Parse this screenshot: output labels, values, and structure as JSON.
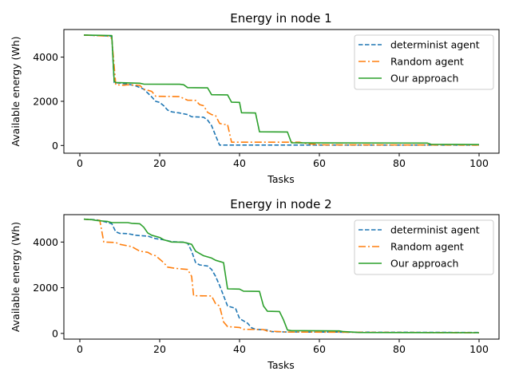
{
  "chart_data": [
    {
      "type": "line",
      "title": "Energy in node 1",
      "xlabel": "Tasks",
      "ylabel": "Available energy (Wh)",
      "xlim": [
        -4,
        105
      ],
      "ylim": [
        -350,
        5250
      ],
      "xticks": [
        0,
        20,
        40,
        60,
        80,
        100
      ],
      "yticks": [
        0,
        2000,
        4000
      ],
      "legend_position": "top-right",
      "series": [
        {
          "name": "determinist agent",
          "color": "#1f77b4",
          "dash": "dashed",
          "points": [
            [
              1,
              5000
            ],
            [
              8,
              4950
            ],
            [
              8.6,
              2850
            ],
            [
              12,
              2780
            ],
            [
              14,
              2700
            ],
            [
              16,
              2550
            ],
            [
              18,
              2200
            ],
            [
              19,
              2000
            ],
            [
              20,
              1950
            ],
            [
              21,
              1800
            ],
            [
              22,
              1600
            ],
            [
              23,
              1520
            ],
            [
              25,
              1470
            ],
            [
              27,
              1400
            ],
            [
              28,
              1300
            ],
            [
              31,
              1280
            ],
            [
              32,
              1150
            ],
            [
              33,
              900
            ],
            [
              34,
              450
            ],
            [
              35,
              20
            ],
            [
              100,
              20
            ]
          ]
        },
        {
          "name": "Random agent",
          "color": "#ff7f0e",
          "dash": "dashdot",
          "points": [
            [
              1,
              5000
            ],
            [
              7,
              4950
            ],
            [
              8,
              4850
            ],
            [
              9,
              2750
            ],
            [
              11,
              2730
            ],
            [
              12,
              2750
            ],
            [
              15,
              2720
            ],
            [
              16,
              2550
            ],
            [
              18,
              2450
            ],
            [
              19,
              2230
            ],
            [
              23,
              2220
            ],
            [
              25,
              2210
            ],
            [
              26,
              2130
            ],
            [
              27,
              2050
            ],
            [
              29,
              2040
            ],
            [
              30,
              1850
            ],
            [
              31,
              1800
            ],
            [
              32,
              1500
            ],
            [
              33,
              1400
            ],
            [
              34,
              1350
            ],
            [
              35,
              1000
            ],
            [
              36,
              950
            ],
            [
              37,
              950
            ],
            [
              38,
              150
            ],
            [
              55,
              150
            ],
            [
              56,
              100
            ],
            [
              57,
              80
            ],
            [
              59,
              50
            ],
            [
              60,
              30
            ],
            [
              100,
              20
            ]
          ]
        },
        {
          "name": "Our approach",
          "color": "#2ca02c",
          "dash": "solid",
          "points": [
            [
              1,
              5000
            ],
            [
              8,
              4980
            ],
            [
              8.6,
              2900
            ],
            [
              9,
              2850
            ],
            [
              15,
              2820
            ],
            [
              16,
              2780
            ],
            [
              25,
              2770
            ],
            [
              26,
              2750
            ],
            [
              27,
              2620
            ],
            [
              32,
              2610
            ],
            [
              33,
              2300
            ],
            [
              37,
              2290
            ],
            [
              38,
              1960
            ],
            [
              40,
              1950
            ],
            [
              40.5,
              1480
            ],
            [
              44,
              1470
            ],
            [
              45,
              620
            ],
            [
              52,
              610
            ],
            [
              53,
              120
            ],
            [
              87,
              110
            ],
            [
              88,
              50
            ],
            [
              100,
              40
            ]
          ]
        }
      ]
    },
    {
      "type": "line",
      "title": "Energy in node 2",
      "xlabel": "Tasks",
      "ylabel": "Available energy (Wh)",
      "xlim": [
        -4,
        105
      ],
      "ylim": [
        -250,
        5200
      ],
      "xticks": [
        0,
        20,
        40,
        60,
        80,
        100
      ],
      "yticks": [
        0,
        2000,
        4000
      ],
      "legend_position": "top-right",
      "series": [
        {
          "name": "determinist agent",
          "color": "#1f77b4",
          "dash": "dashed",
          "points": [
            [
              1,
              5000
            ],
            [
              4,
              4980
            ],
            [
              6,
              4900
            ],
            [
              8,
              4800
            ],
            [
              9,
              4450
            ],
            [
              10,
              4380
            ],
            [
              12,
              4370
            ],
            [
              14,
              4300
            ],
            [
              15,
              4280
            ],
            [
              17,
              4260
            ],
            [
              19,
              4150
            ],
            [
              21,
              4100
            ],
            [
              23,
              4020
            ],
            [
              26,
              3990
            ],
            [
              27,
              3950
            ],
            [
              28,
              3600
            ],
            [
              29,
              3100
            ],
            [
              30,
              3000
            ],
            [
              32,
              2950
            ],
            [
              33,
              2800
            ],
            [
              34,
              2500
            ],
            [
              35,
              2100
            ],
            [
              37,
              1200
            ],
            [
              39,
              1100
            ],
            [
              40,
              650
            ],
            [
              42,
              450
            ],
            [
              43,
              250
            ],
            [
              44,
              180
            ],
            [
              47,
              150
            ],
            [
              48,
              80
            ],
            [
              52,
              60
            ],
            [
              100,
              40
            ]
          ]
        },
        {
          "name": "Random agent",
          "color": "#ff7f0e",
          "dash": "dashdot",
          "points": [
            [
              1,
              5000
            ],
            [
              5,
              4950
            ],
            [
              6,
              4000
            ],
            [
              9,
              3980
            ],
            [
              10,
              3900
            ],
            [
              13,
              3800
            ],
            [
              14,
              3700
            ],
            [
              15,
              3600
            ],
            [
              17,
              3550
            ],
            [
              18,
              3450
            ],
            [
              19,
              3400
            ],
            [
              20,
              3250
            ],
            [
              21,
              3100
            ],
            [
              22,
              2900
            ],
            [
              24,
              2850
            ],
            [
              25,
              2830
            ],
            [
              27,
              2800
            ],
            [
              28,
              2500
            ],
            [
              28.5,
              1650
            ],
            [
              33,
              1640
            ],
            [
              34,
              1300
            ],
            [
              35,
              1200
            ],
            [
              36,
              500
            ],
            [
              37,
              300
            ],
            [
              40,
              260
            ],
            [
              41,
              180
            ],
            [
              46,
              170
            ],
            [
              47,
              100
            ],
            [
              50,
              80
            ],
            [
              51,
              60
            ],
            [
              100,
              30
            ]
          ]
        },
        {
          "name": "Our approach",
          "color": "#2ca02c",
          "dash": "solid",
          "points": [
            [
              1,
              5000
            ],
            [
              3,
              4980
            ],
            [
              4,
              4950
            ],
            [
              5,
              4930
            ],
            [
              7,
              4900
            ],
            [
              8,
              4850
            ],
            [
              12,
              4850
            ],
            [
              13,
              4820
            ],
            [
              15,
              4800
            ],
            [
              16,
              4650
            ],
            [
              17,
              4400
            ],
            [
              18,
              4300
            ],
            [
              20,
              4200
            ],
            [
              21,
              4100
            ],
            [
              23,
              4000
            ],
            [
              26,
              3990
            ],
            [
              28,
              3900
            ],
            [
              29,
              3600
            ],
            [
              30,
              3500
            ],
            [
              31,
              3400
            ],
            [
              33,
              3300
            ],
            [
              34,
              3200
            ],
            [
              36,
              3100
            ],
            [
              37,
              1950
            ],
            [
              40,
              1940
            ],
            [
              41,
              1850
            ],
            [
              45,
              1840
            ],
            [
              46,
              1200
            ],
            [
              47,
              970
            ],
            [
              50,
              960
            ],
            [
              51,
              600
            ],
            [
              52,
              150
            ],
            [
              53,
              120
            ],
            [
              65,
              110
            ],
            [
              66,
              80
            ],
            [
              68,
              60
            ],
            [
              70,
              40
            ],
            [
              100,
              30
            ]
          ]
        }
      ]
    }
  ]
}
